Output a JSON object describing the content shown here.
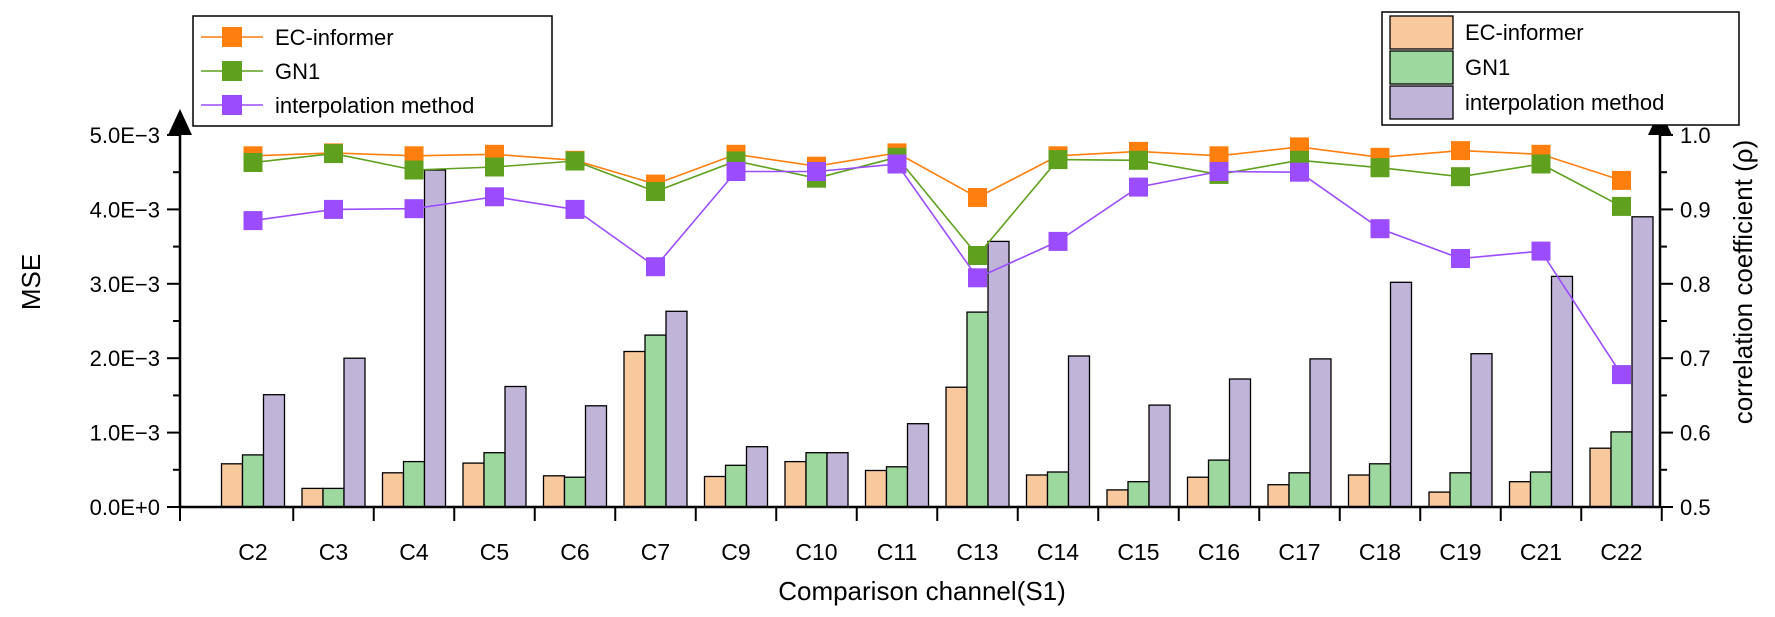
{
  "chart_data": {
    "type": "bar+line",
    "xlabel": "Comparison channel(S1)",
    "ylabel": "MSE",
    "y2label": "correlation coefficient (ρ)",
    "ylim": [
      0,
      0.005
    ],
    "y2lim": [
      0.5,
      1.0
    ],
    "y_ticks": [
      {
        "value": 0.0,
        "label": "0.0E+0"
      },
      {
        "value": 0.001,
        "label": "1.0E−3"
      },
      {
        "value": 0.002,
        "label": "2.0E−3"
      },
      {
        "value": 0.003,
        "label": "3.0E−3"
      },
      {
        "value": 0.004,
        "label": "4.0E−3"
      },
      {
        "value": 0.005,
        "label": "5.0E−3"
      }
    ],
    "y2_ticks": [
      {
        "value": 0.5,
        "label": "0.5"
      },
      {
        "value": 0.6,
        "label": "0.6"
      },
      {
        "value": 0.7,
        "label": "0.7"
      },
      {
        "value": 0.8,
        "label": "0.8"
      },
      {
        "value": 0.9,
        "label": "0.9"
      },
      {
        "value": 1.0,
        "label": "1.0"
      }
    ],
    "categories": [
      "C2",
      "C3",
      "C4",
      "C5",
      "C6",
      "C7",
      "C9",
      "C10",
      "C11",
      "C13",
      "C14",
      "C15",
      "C16",
      "C17",
      "C18",
      "C19",
      "C21",
      "C22"
    ],
    "bar_series": [
      {
        "name": "EC-informer",
        "color": "#f9c99e",
        "values": [
          0.00058,
          0.00025,
          0.00046,
          0.00059,
          0.00042,
          0.00209,
          0.00041,
          0.00061,
          0.00049,
          0.00161,
          0.00043,
          0.00023,
          0.0004,
          0.0003,
          0.00043,
          0.0002,
          0.00034,
          0.00079
        ]
      },
      {
        "name": "GN1",
        "color": "#9dd99f",
        "values": [
          0.0007,
          0.00025,
          0.00061,
          0.00073,
          0.0004,
          0.00231,
          0.00056,
          0.00073,
          0.00054,
          0.00262,
          0.00047,
          0.00034,
          0.00063,
          0.00046,
          0.00058,
          0.00046,
          0.00047,
          0.00101
        ]
      },
      {
        "name": "interpolation method",
        "color": "#c1b4d9",
        "values": [
          0.00151,
          0.002,
          0.00453,
          0.00162,
          0.00136,
          0.00263,
          0.00081,
          0.00073,
          0.00112,
          0.00357,
          0.00203,
          0.00137,
          0.00172,
          0.00199,
          0.00302,
          0.00206,
          0.0031,
          0.0039
        ]
      }
    ],
    "line_series": [
      {
        "name": "EC-informer",
        "color": "#ff7f0e",
        "values": [
          0.972,
          0.976,
          0.972,
          0.974,
          0.966,
          0.934,
          0.974,
          0.958,
          0.976,
          0.916,
          0.972,
          0.978,
          0.972,
          0.984,
          0.97,
          0.979,
          0.974,
          0.939
        ]
      },
      {
        "name": "GN1",
        "color": "#5fa01e",
        "values": [
          0.963,
          0.975,
          0.953,
          0.957,
          0.965,
          0.924,
          0.965,
          0.942,
          0.97,
          0.838,
          0.967,
          0.966,
          0.947,
          0.966,
          0.956,
          0.944,
          0.961,
          0.904
        ]
      },
      {
        "name": "interpolation method",
        "color": "#9b4dfd",
        "values": [
          0.885,
          0.9,
          0.901,
          0.917,
          0.9,
          0.823,
          0.951,
          0.951,
          0.961,
          0.808,
          0.857,
          0.93,
          0.951,
          0.95,
          0.874,
          0.834,
          0.844,
          0.678
        ]
      }
    ],
    "legends": {
      "lines_position": "top-left",
      "bars_position": "top-right"
    }
  }
}
